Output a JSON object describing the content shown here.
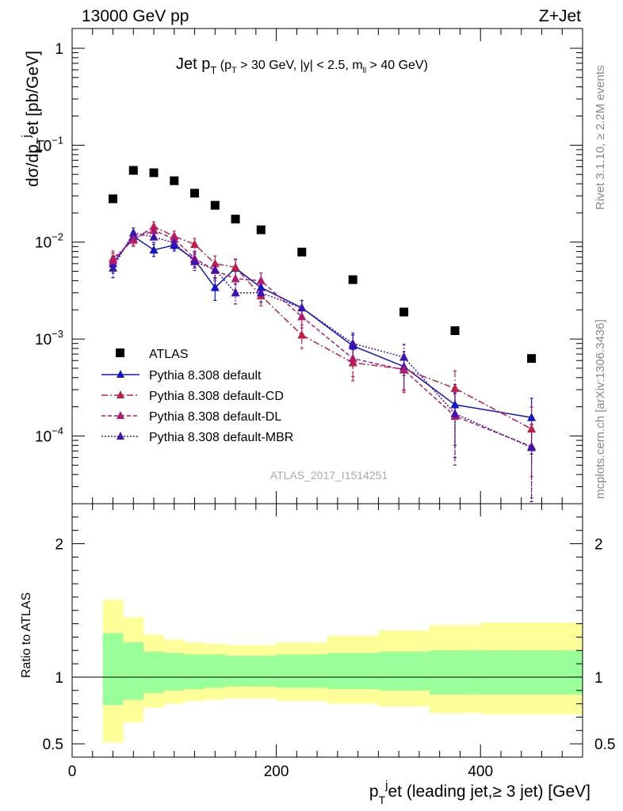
{
  "header": {
    "left": "13000 GeV pp",
    "right": "Z+Jet"
  },
  "side_labels": {
    "rivet": "Rivet 3.1.10, ≥ 2.2M events",
    "mcplots": "mcplots.cern.ch [arXiv:1306.3436]"
  },
  "watermark": "ATLAS_2017_I1514251",
  "chart_data": {
    "type": "scatter",
    "title": {
      "main": "Jet p",
      "main_sub": "T",
      "cut_1": " (p",
      "cut_1_sub": "T",
      "cut_2": " > 30 GeV, |y| < 2.5, m",
      "cut_2_sub": "ll",
      "cut_3": " > 40 GeV)"
    },
    "ylabel": {
      "a": "dσ/dp",
      "a_sub": "T",
      "b": "j",
      "c": "et [pb/GeV]"
    },
    "xlabel": {
      "a": "p",
      "a_sub": "T",
      "b": "j",
      "c": "et (leading jet,≥ 3 jet) [GeV]"
    },
    "ratio_ylabel": "Ratio to ATLAS",
    "xlim": [
      0,
      500
    ],
    "ylim": [
      2e-05,
      1.6
    ],
    "ratio_ylim": [
      0.4,
      2.3
    ],
    "y_scale": "log",
    "x_ticks": [
      "0",
      "200",
      "400"
    ],
    "y_ticks": [
      {
        "base": "1",
        "exp": ""
      },
      {
        "base": "10",
        "exp": "−1"
      },
      {
        "base": "10",
        "exp": "−2"
      },
      {
        "base": "10",
        "exp": "−3"
      },
      {
        "base": "10",
        "exp": "−4"
      }
    ],
    "ratio_ticks": [
      "0.5",
      "1",
      "2"
    ],
    "x": [
      40,
      60,
      80,
      100,
      120,
      140,
      160,
      185,
      225,
      275,
      325,
      375,
      450
    ],
    "bin_edges": [
      30,
      50,
      70,
      90,
      110,
      130,
      150,
      170,
      200,
      250,
      300,
      350,
      400,
      500
    ],
    "series": [
      {
        "name": "ATLAS",
        "color": "#000000",
        "marker": "square",
        "values": [
          0.028,
          0.055,
          0.052,
          0.043,
          0.032,
          0.024,
          0.0173,
          0.0134,
          0.0079,
          0.0041,
          0.0019,
          0.00122,
          0.00063
        ]
      },
      {
        "name": "Pythia 8.308 default",
        "color": "#1414cc",
        "marker": "triangle",
        "line": "solid",
        "values": [
          0.006,
          0.0115,
          0.0083,
          0.0093,
          0.0066,
          0.0034,
          0.0054,
          0.0034,
          0.0021,
          0.00085,
          0.00052,
          0.00021,
          0.000155
        ],
        "errors": [
          0.0012,
          0.0015,
          0.0012,
          0.0012,
          0.0012,
          0.0009,
          0.0012,
          0.0007,
          0.0004,
          0.00025,
          0.00022,
          0.00013,
          9e-05
        ]
      },
      {
        "name": "Pythia 8.308 default-CD",
        "color": "#c41e48",
        "marker": "triangle",
        "line": "dashdot",
        "values": [
          0.0068,
          0.0105,
          0.0145,
          0.0115,
          0.0095,
          0.006,
          0.0055,
          0.0028,
          0.0011,
          0.00057,
          0.00049,
          0.00031,
          0.000118
        ],
        "errors": [
          0.0013,
          0.0015,
          0.0017,
          0.0015,
          0.0014,
          0.0012,
          0.0012,
          0.0006,
          0.0003,
          0.0002,
          0.0002,
          0.00016,
          8e-05
        ]
      },
      {
        "name": "Pythia 8.308 default-DL",
        "color": "#b4186e",
        "marker": "triangle",
        "line": "dashed",
        "values": [
          0.0064,
          0.0108,
          0.0132,
          0.0108,
          0.0068,
          0.0051,
          0.0042,
          0.004,
          0.0017,
          0.00063,
          0.00048,
          0.00016,
          7.8e-05
        ],
        "errors": [
          0.0013,
          0.0015,
          0.0016,
          0.0014,
          0.0012,
          0.0011,
          0.001,
          0.0008,
          0.0004,
          0.00022,
          0.0002,
          0.00011,
          5.5e-05
        ]
      },
      {
        "name": "Pythia 8.308 default-MBR",
        "color": "#3c14b4",
        "marker": "triangle",
        "line": "dotted",
        "values": [
          0.0054,
          0.0125,
          0.0113,
          0.0098,
          0.0063,
          0.0052,
          0.003,
          0.003,
          0.0021,
          0.0009,
          0.00065,
          0.00017,
          7.6e-05
        ],
        "errors": [
          0.0011,
          0.0015,
          0.0014,
          0.0013,
          0.0012,
          0.001,
          0.0007,
          0.0006,
          0.0004,
          0.00025,
          0.00023,
          0.00011,
          5.5e-05
        ]
      }
    ],
    "ratio_bands": {
      "inner_color": "#99ff99",
      "outer_color": "#ffff99",
      "inner_lo": [
        0.79,
        0.83,
        0.88,
        0.9,
        0.91,
        0.92,
        0.93,
        0.93,
        0.92,
        0.91,
        0.9,
        0.87,
        0.87
      ],
      "inner_hi": [
        1.33,
        1.26,
        1.19,
        1.18,
        1.17,
        1.17,
        1.16,
        1.16,
        1.17,
        1.18,
        1.19,
        1.2,
        1.2
      ],
      "outer_lo": [
        0.51,
        0.66,
        0.77,
        0.8,
        0.82,
        0.83,
        0.84,
        0.84,
        0.82,
        0.8,
        0.78,
        0.73,
        0.72
      ],
      "outer_hi": [
        1.58,
        1.45,
        1.32,
        1.28,
        1.26,
        1.25,
        1.24,
        1.24,
        1.26,
        1.31,
        1.35,
        1.39,
        1.41
      ]
    }
  }
}
